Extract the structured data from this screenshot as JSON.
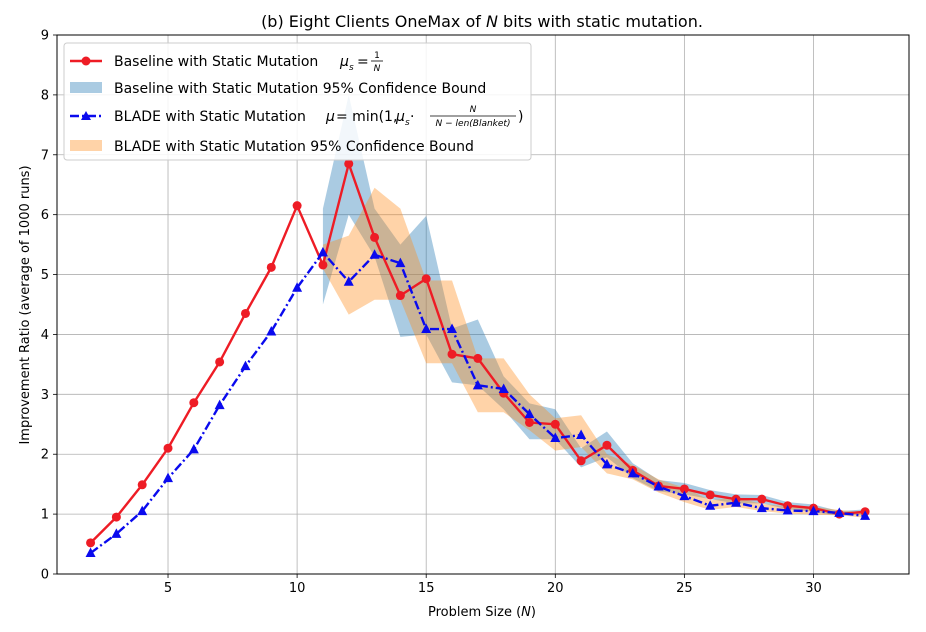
{
  "chart_data": {
    "type": "line",
    "title_prefix": "(b) Eight Clients OneMax of ",
    "title_var": "N",
    "title_suffix": " bits with static mutation.",
    "xlabel_prefix": "Problem Size (",
    "xlabel_var": "N",
    "xlabel_suffix": ")",
    "ylabel": "Improvement Ratio (average of 1000 runs)",
    "xlim": [
      0.7,
      33.7
    ],
    "ylim": [
      0,
      9
    ],
    "xticks": [
      5,
      10,
      15,
      20,
      25,
      30
    ],
    "yticks": [
      0,
      1,
      2,
      3,
      4,
      5,
      6,
      7,
      8,
      9
    ],
    "grid": true,
    "legend_position": "upper-left",
    "legend": [
      {
        "key": "baseline",
        "label_prefix": "Baseline with Static Mutation ",
        "formula": "μs = 1/N"
      },
      {
        "key": "baseline_ci",
        "label": "Baseline with Static Mutation 95% Confidence Bound"
      },
      {
        "key": "blade",
        "label_prefix": "BLADE with Static Mutation ",
        "formula": "μ = min(1, μs·N/(N − len(Blanket)))"
      },
      {
        "key": "blade_ci",
        "label": "BLADE with Static Mutation 95% Confidence Bound"
      }
    ],
    "series": [
      {
        "name": "Baseline with Static Mutation",
        "color": "#ee1c25",
        "marker": "circle",
        "linestyle": "solid",
        "x": [
          2,
          3,
          4,
          5,
          6,
          7,
          8,
          9,
          10,
          11,
          12,
          13,
          14,
          15,
          16,
          17,
          18,
          19,
          20,
          21,
          22,
          23,
          24,
          25,
          26,
          27,
          28,
          29,
          30,
          31,
          32
        ],
        "y": [
          0.52,
          0.95,
          1.49,
          2.1,
          2.86,
          3.54,
          4.35,
          5.12,
          6.15,
          5.16,
          6.85,
          5.62,
          4.65,
          4.93,
          3.67,
          3.6,
          3.02,
          2.53,
          2.5,
          1.89,
          2.15,
          1.73,
          1.47,
          1.42,
          1.32,
          1.25,
          1.25,
          1.14,
          1.1,
          1.0,
          1.04
        ]
      },
      {
        "name": "BLADE with Static Mutation",
        "color": "#0a0aee",
        "marker": "triangle",
        "linestyle": "dashdot",
        "x": [
          2,
          3,
          4,
          5,
          6,
          7,
          8,
          9,
          10,
          11,
          12,
          13,
          14,
          15,
          16,
          17,
          18,
          19,
          20,
          21,
          22,
          23,
          24,
          25,
          26,
          27,
          28,
          29,
          30,
          31,
          32
        ],
        "y": [
          0.35,
          0.67,
          1.05,
          1.6,
          2.08,
          2.82,
          3.47,
          4.05,
          4.78,
          5.37,
          4.88,
          5.33,
          5.19,
          4.09,
          4.09,
          3.15,
          3.09,
          2.67,
          2.27,
          2.32,
          1.83,
          1.68,
          1.46,
          1.3,
          1.14,
          1.19,
          1.1,
          1.06,
          1.05,
          1.02,
          0.97
        ]
      }
    ],
    "bands": [
      {
        "name": "Baseline with Static Mutation 95% Confidence Bound",
        "color": "#1f77b4",
        "opacity": 0.38,
        "x": [
          11,
          12,
          13,
          14,
          15,
          16,
          17,
          18,
          19,
          20,
          21,
          22,
          23,
          24,
          25,
          26,
          27,
          28,
          29,
          30,
          31,
          32
        ],
        "lower": [
          4.5,
          6.0,
          5.3,
          3.96,
          4.0,
          3.2,
          3.15,
          2.75,
          2.25,
          2.25,
          1.78,
          1.95,
          1.6,
          1.38,
          1.33,
          1.25,
          1.18,
          1.18,
          1.08,
          1.04,
          0.97,
          1.0
        ],
        "upper": [
          6.1,
          8.0,
          6.1,
          5.5,
          5.98,
          4.1,
          4.25,
          3.3,
          2.85,
          2.75,
          2.1,
          2.38,
          1.85,
          1.57,
          1.52,
          1.4,
          1.33,
          1.32,
          1.2,
          1.16,
          1.05,
          1.08
        ]
      },
      {
        "name": "BLADE with Static Mutation 95% Confidence Bound",
        "color": "#ff8c1a",
        "opacity": 0.38,
        "x": [
          11,
          12,
          13,
          14,
          15,
          16,
          17,
          18,
          19,
          20,
          21,
          22,
          23,
          24,
          25,
          26,
          27,
          28,
          29,
          30,
          31,
          32
        ],
        "lower": [
          5.1,
          4.33,
          4.58,
          4.58,
          3.52,
          3.52,
          2.7,
          2.7,
          2.4,
          2.06,
          2.12,
          1.68,
          1.58,
          1.36,
          1.2,
          1.07,
          1.12,
          1.05,
          1.01,
          0.99,
          0.98,
          0.94
        ],
        "upper": [
          5.5,
          5.65,
          6.45,
          6.1,
          4.9,
          4.9,
          3.6,
          3.6,
          3.0,
          2.6,
          2.65,
          2.0,
          1.82,
          1.58,
          1.44,
          1.23,
          1.28,
          1.17,
          1.13,
          1.12,
          1.07,
          1.02
        ]
      }
    ]
  }
}
